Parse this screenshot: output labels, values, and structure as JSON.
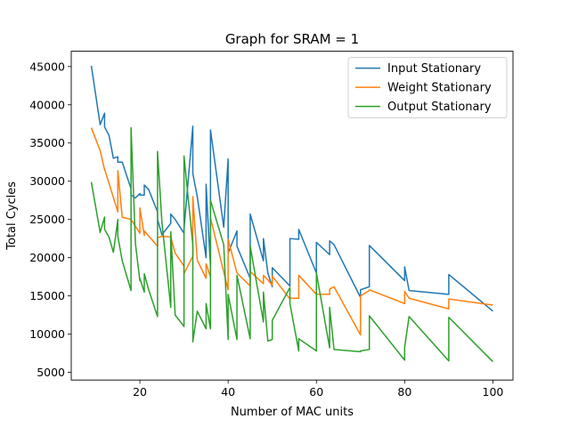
{
  "chart_data": {
    "type": "line",
    "title": "Graph for SRAM = 1",
    "xlabel": "Number of MAC units",
    "ylabel": "Total Cycles",
    "xlim": [
      4.45,
      104.55
    ],
    "ylim": [
      4000,
      47000
    ],
    "xticks": [
      20,
      40,
      60,
      80,
      100
    ],
    "yticks": [
      5000,
      10000,
      15000,
      20000,
      25000,
      30000,
      35000,
      40000,
      45000
    ],
    "grid": false,
    "legend_position": "top-right",
    "series": [
      {
        "name": "Input Stationary",
        "color": "#1f77b4",
        "x": [
          9,
          11,
          12,
          12,
          13,
          14,
          15,
          15,
          16,
          18,
          18,
          19,
          20,
          20,
          21,
          21,
          22,
          24,
          24,
          25,
          27,
          27,
          28,
          30,
          30,
          32,
          32,
          33,
          35,
          35,
          36,
          36,
          39,
          40,
          40,
          42,
          42,
          45,
          45,
          48,
          48,
          49,
          50,
          50,
          54,
          54,
          56,
          56,
          60,
          60,
          63,
          63,
          64,
          70,
          70,
          72,
          72,
          80,
          80,
          81,
          90,
          90,
          100
        ],
        "y": [
          45100,
          37400,
          38900,
          37100,
          36000,
          33000,
          33200,
          32500,
          32500,
          29000,
          28200,
          27800,
          28400,
          28200,
          28200,
          29500,
          28900,
          26000,
          25000,
          23000,
          24500,
          25700,
          25000,
          23200,
          23700,
          37200,
          31000,
          28000,
          20000,
          29600,
          18800,
          36700,
          24000,
          32900,
          20600,
          23500,
          21500,
          17300,
          25700,
          19600,
          22500,
          18000,
          16200,
          18700,
          16300,
          22500,
          22400,
          23700,
          18000,
          22000,
          20400,
          22200,
          21700,
          14800,
          15800,
          16200,
          21600,
          17000,
          18800,
          15700,
          15200,
          17800,
          13000
        ]
      },
      {
        "name": "Weight Stationary",
        "color": "#ff7f0e",
        "x": [
          9,
          11,
          12,
          12,
          15,
          15,
          16,
          18,
          20,
          20,
          21,
          21,
          24,
          24,
          25,
          27,
          28,
          30,
          30,
          32,
          32,
          33,
          35,
          35,
          36,
          36,
          40,
          40,
          42,
          45,
          45,
          48,
          48,
          49,
          50,
          50,
          54,
          54,
          56,
          56,
          60,
          63,
          63,
          64,
          70,
          70,
          72,
          72,
          80,
          80,
          81,
          90,
          90,
          100
        ],
        "y": [
          37000,
          34000,
          31500,
          31600,
          26000,
          31400,
          25300,
          25000,
          23200,
          26500,
          22900,
          23500,
          21500,
          22600,
          22800,
          22700,
          20600,
          18900,
          17900,
          20200,
          28000,
          19700,
          17300,
          19200,
          17500,
          25200,
          15800,
          22400,
          18000,
          16300,
          18200,
          16600,
          17700,
          17100,
          16400,
          17600,
          14600,
          14700,
          14700,
          17700,
          15200,
          15200,
          15900,
          16200,
          9900,
          15000,
          15700,
          15800,
          14000,
          15600,
          14700,
          13300,
          14600,
          13800
        ]
      },
      {
        "name": "Output Stationary",
        "color": "#2ca02c",
        "x": [
          9,
          11,
          12,
          12,
          13,
          14,
          15,
          15,
          16,
          18,
          18,
          19,
          20,
          20,
          21,
          21,
          22,
          24,
          24,
          25,
          27,
          27,
          28,
          30,
          30,
          32,
          32,
          33,
          35,
          35,
          36,
          36,
          39,
          40,
          40,
          42,
          42,
          45,
          45,
          48,
          48,
          49,
          50,
          50,
          54,
          54,
          56,
          56,
          60,
          60,
          63,
          63,
          64,
          70,
          70,
          72,
          72,
          80,
          80,
          81,
          90,
          90,
          100
        ],
        "y": [
          29900,
          23300,
          25300,
          23700,
          22700,
          20700,
          25000,
          22800,
          19600,
          15700,
          37000,
          21800,
          17000,
          17300,
          15500,
          17900,
          15800,
          12300,
          33900,
          24600,
          13500,
          23400,
          12500,
          11000,
          33300,
          21700,
          9000,
          13000,
          10700,
          14000,
          10700,
          27500,
          21700,
          9300,
          15200,
          9300,
          17700,
          9400,
          21500,
          11600,
          15500,
          9100,
          9300,
          11800,
          16100,
          14000,
          7800,
          9400,
          7800,
          18000,
          8200,
          13500,
          8000,
          7700,
          7800,
          8000,
          12400,
          6600,
          8300,
          12300,
          6500,
          12200,
          6400
        ]
      }
    ]
  }
}
